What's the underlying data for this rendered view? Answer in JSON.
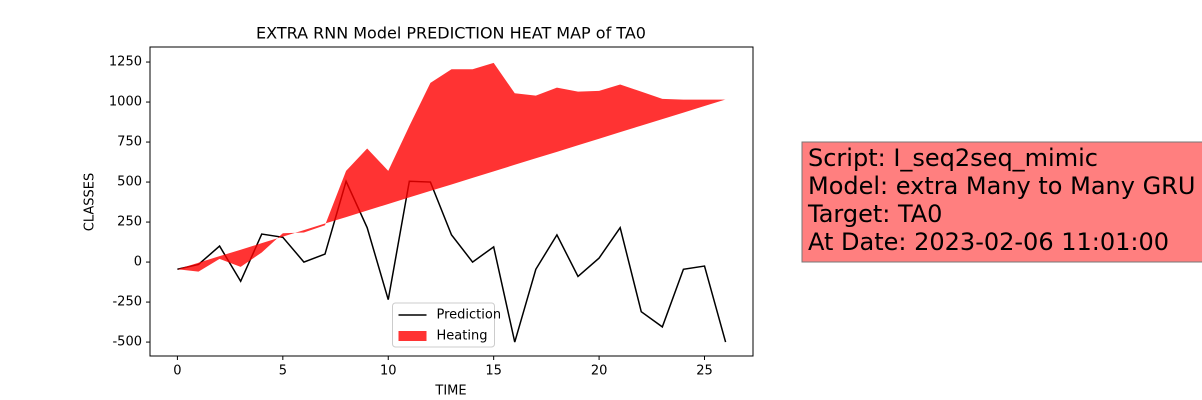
{
  "chart_data": {
    "type": "line",
    "title": "EXTRA RNN Model PREDICTION HEAT MAP of TA0",
    "x_label": "TIME",
    "y_label": "CLASSES",
    "x": [
      0,
      1,
      2,
      3,
      4,
      5,
      6,
      7,
      8,
      9,
      10,
      11,
      12,
      13,
      14,
      15,
      16,
      17,
      18,
      19,
      20,
      21,
      22,
      23,
      24,
      25,
      26
    ],
    "series": [
      {
        "name": "Prediction",
        "color": "#000000",
        "values": [
          -45,
          -15,
          100,
          -120,
          175,
          155,
          0,
          50,
          505,
          215,
          -235,
          505,
          500,
          170,
          0,
          95,
          -500,
          -45,
          170,
          -90,
          25,
          215,
          -310,
          -405,
          -45,
          -25,
          -500
        ]
      },
      {
        "name": "Heating",
        "color": "#ff0000",
        "values": [
          -45,
          -60,
          20,
          -30,
          60,
          180,
          185,
          230,
          570,
          710,
          570,
          850,
          1120,
          1205,
          1205,
          1245,
          1055,
          1040,
          1090,
          1065,
          1070,
          1110,
          1065,
          1020,
          1015,
          1015,
          1015
        ],
        "lower": [
          -45,
          -4,
          37,
          77,
          118,
          159,
          200,
          241,
          281,
          322,
          363,
          404,
          445,
          485,
          526,
          567,
          608,
          649,
          689,
          730,
          771,
          812,
          853,
          893,
          934,
          975,
          1016
        ]
      }
    ],
    "xlim": [
      -1.3,
      27.3
    ],
    "ylim": [
      -587,
      1344
    ],
    "xticks": [
      0,
      5,
      10,
      15,
      20,
      25
    ],
    "yticks": [
      -500,
      -250,
      0,
      250,
      500,
      750,
      1000,
      1250
    ],
    "legend": "lower center",
    "annotation": [
      "Script: I_seq2seq_mimic",
      "Model: extra Many to Many GRU",
      "Target: TA0",
      "At Date: 2023-02-06 11:01:00"
    ]
  }
}
